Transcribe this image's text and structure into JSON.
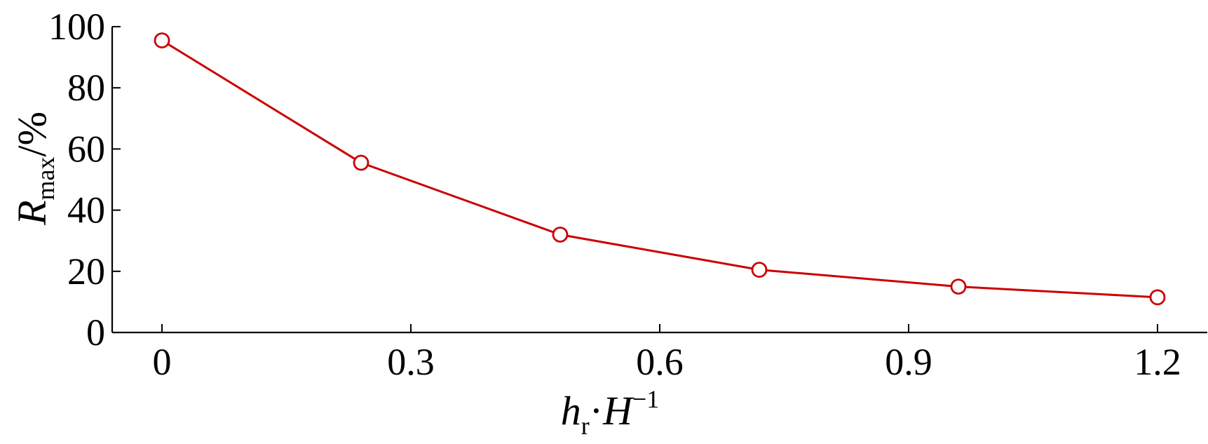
{
  "chart_data": {
    "type": "line",
    "title": "",
    "x_axis": {
      "label_main": "h",
      "label_sub": "r",
      "label_dot": "·",
      "label_main2": "H",
      "label_sup": "−1",
      "ticks": [
        "0",
        "0.3",
        "0.6",
        "0.9",
        "1.2"
      ],
      "tick_values": [
        0,
        0.3,
        0.6,
        0.9,
        1.2
      ],
      "range": [
        -0.06,
        1.26
      ]
    },
    "y_axis": {
      "label_main": "R",
      "label_sub": "max",
      "label_suffix": "/%",
      "ticks": [
        "0",
        "20",
        "40",
        "60",
        "80",
        "100"
      ],
      "tick_values": [
        0,
        20,
        40,
        60,
        80,
        100
      ],
      "range": [
        0,
        100
      ]
    },
    "series": [
      {
        "color": "#cc0000",
        "marker": "open-circle",
        "x": [
          0,
          0.24,
          0.48,
          0.72,
          0.96,
          1.2
        ],
        "y": [
          95.5,
          55.5,
          32,
          20.5,
          15,
          11.5
        ]
      }
    ],
    "grid": false,
    "legend": "none"
  }
}
